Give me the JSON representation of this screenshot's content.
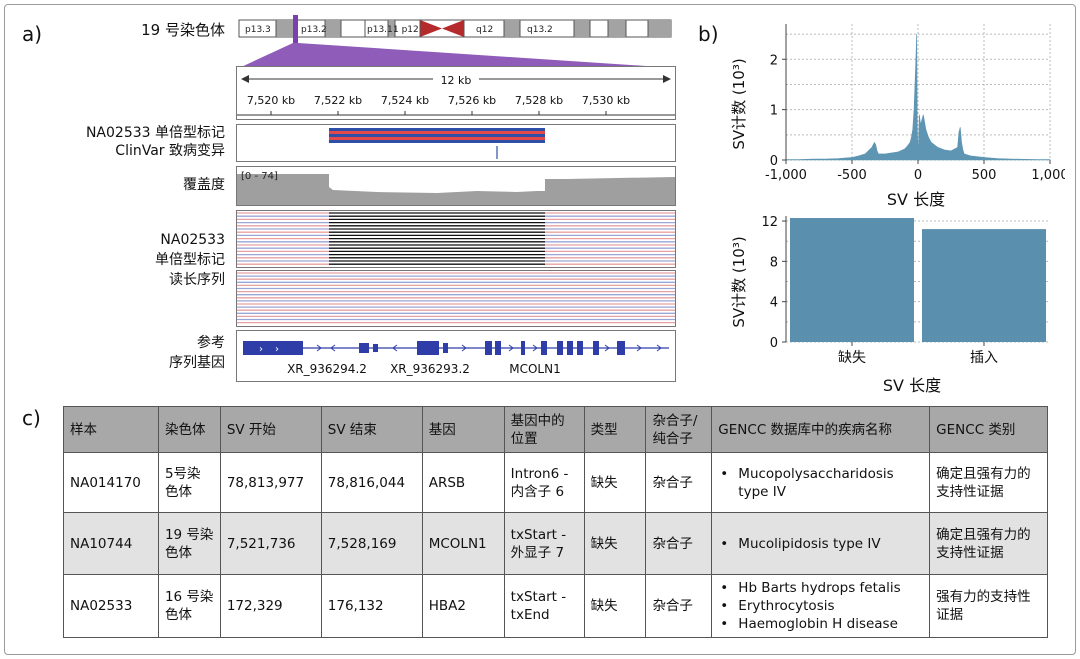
{
  "panels": {
    "a": "a)",
    "b": "b)",
    "c": "c)"
  },
  "ideogram": {
    "label": "19 号染色体",
    "bands": [
      "p13.3",
      "p13.2",
      "p13.1",
      "1 p12",
      "q12",
      "q13.2"
    ]
  },
  "ruler": {
    "span": "12 kb",
    "ticks": [
      "7,520 kb",
      "7,522 kb",
      "7,524 kb",
      "7,526 kb",
      "7,528 kb",
      "7,530 kb"
    ]
  },
  "tracks": {
    "haplotag": "NA02533 单倍型标记",
    "clinvar": "ClinVar 致病变异",
    "coverage": "覆盖度",
    "coverage_range": "[0 - 74]",
    "reads_l1": "NA02533",
    "reads_l2": "单倍型标记",
    "reads_l3": "读长序列",
    "ref_l1": "参考",
    "ref_l2": "序列基因",
    "genes": [
      "XR_936294.2",
      "XR_936293.2",
      "MCOLN1"
    ]
  },
  "colors": {
    "bar": "#5b8fae",
    "hist": "#5d95b2",
    "hapRed": "#e34949",
    "hapBlue": "#2e4fa7",
    "gene": "#2f3da8",
    "centromere": "#b52a2a",
    "selector": "#7b3fae"
  },
  "chart_data": [
    {
      "type": "area",
      "xlabel": "SV 长度",
      "ylabel": "SV计数 (10³)",
      "xlim": [
        -1000,
        1000
      ],
      "ylim": [
        0,
        2.7
      ],
      "xticks": [
        "-1,000",
        "-500",
        "0",
        "500",
        "1,000"
      ],
      "yticks": [
        "0",
        "1",
        "2"
      ],
      "grid": true,
      "series": [
        {
          "x": [
            -1000,
            -900,
            -800,
            -700,
            -600,
            -500,
            -450,
            -400,
            -350,
            -330,
            -320,
            -310,
            -300,
            -250,
            -200,
            -150,
            -100,
            -80,
            -60,
            -50,
            -40,
            -30,
            -20,
            -10,
            -5,
            0,
            5,
            10,
            20,
            30,
            40,
            50,
            60,
            80,
            100,
            150,
            200,
            250,
            300,
            310,
            320,
            330,
            340,
            350,
            400,
            500,
            600,
            700,
            800,
            900,
            1000
          ],
          "y": [
            0.01,
            0.01,
            0.02,
            0.02,
            0.03,
            0.05,
            0.08,
            0.12,
            0.25,
            0.35,
            0.3,
            0.18,
            0.12,
            0.12,
            0.14,
            0.16,
            0.22,
            0.28,
            0.35,
            0.45,
            0.6,
            1.0,
            1.7,
            2.5,
            0.6,
            0.15,
            0.4,
            0.9,
            0.7,
            0.8,
            0.9,
            0.75,
            0.6,
            0.45,
            0.35,
            0.25,
            0.2,
            0.18,
            0.25,
            0.55,
            0.65,
            0.35,
            0.2,
            0.12,
            0.08,
            0.05,
            0.03,
            0.02,
            0.015,
            0.01,
            0.01
          ]
        }
      ]
    },
    {
      "type": "bar",
      "xlabel": "SV 长度",
      "ylabel": "SV计数 (10³)",
      "categories": [
        "缺失",
        "插入"
      ],
      "values": [
        12.3,
        11.2
      ],
      "ylim": [
        0,
        12.5
      ],
      "yticks": [
        "0",
        "4",
        "8",
        "12"
      ],
      "grid": true
    }
  ],
  "table": {
    "headers": [
      "样本",
      "染色体",
      "SV 开始",
      "SV 结束",
      "基因",
      "基因中的位置",
      "类型",
      "杂合子/纯合子",
      "GENCC 数据库中的疾病名称",
      "GENCC 类别"
    ],
    "rows": [
      {
        "sample": "NA014170",
        "chrom": "5号染色体",
        "start": "78,813,977",
        "end": "78,816,044",
        "gene": "ARSB",
        "pos": "Intron6 - 内含子 6",
        "type": "缺失",
        "zyg": "杂合子",
        "diseases": [
          "Mucopolysaccharidosis type IV"
        ],
        "cat": "确定且强有力的支持性证据"
      },
      {
        "sample": "NA10744",
        "chrom": "19 号染色体",
        "start": "7,521,736",
        "end": "7,528,169",
        "gene": "MCOLN1",
        "pos": "txStart - 外显子 7",
        "type": "缺失",
        "zyg": "杂合子",
        "diseases": [
          "Mucolipidosis type IV"
        ],
        "cat": "确定且强有力的支持性证据"
      },
      {
        "sample": "NA02533",
        "chrom": "16 号染色体",
        "start": "172,329",
        "end": "176,132",
        "gene": "HBA2",
        "pos": "txStart - txEnd",
        "type": "缺失",
        "zyg": "杂合子",
        "diseases": [
          "Hb Barts hydrops fetalis",
          "Erythrocytosis",
          "Haemoglobin H disease"
        ],
        "cat": "强有力的支持性证据"
      }
    ]
  }
}
